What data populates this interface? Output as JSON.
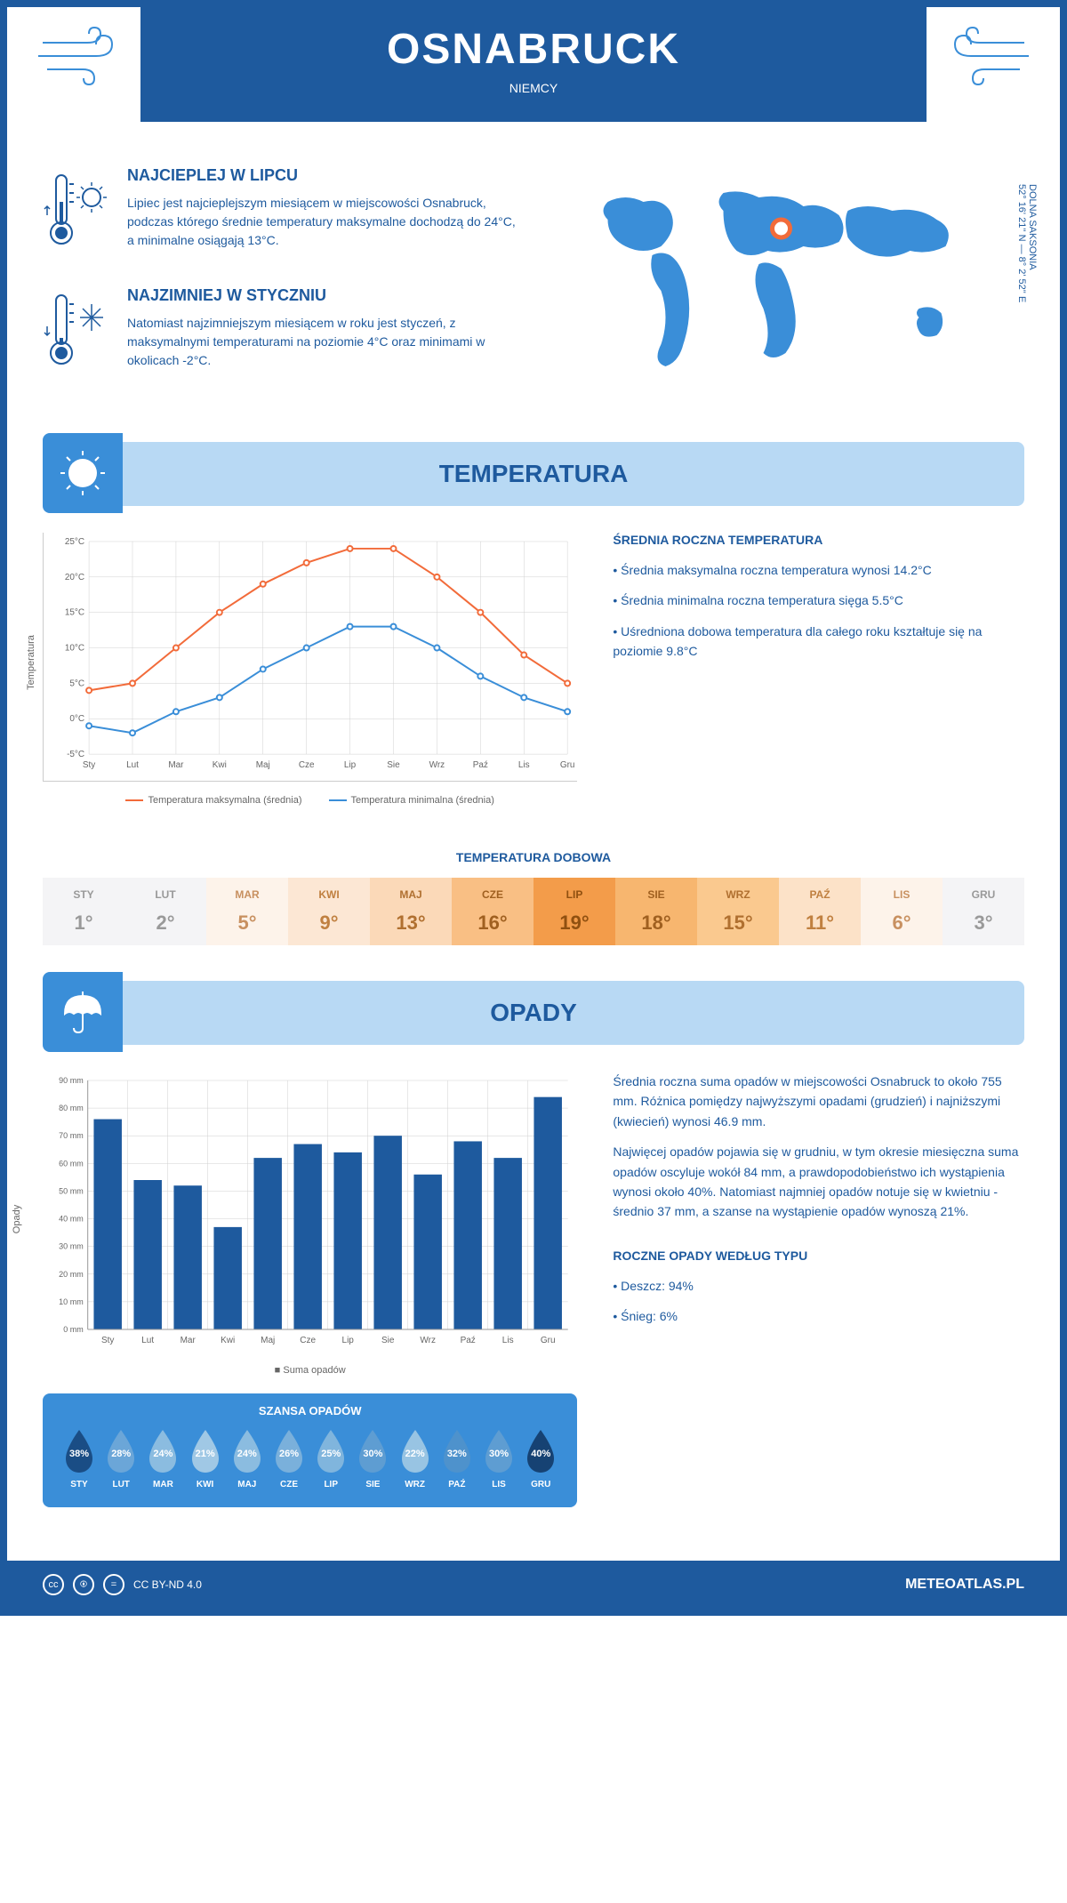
{
  "header": {
    "city": "OSNABRUCK",
    "country": "NIEMCY"
  },
  "coords": {
    "text": "52° 16' 21'' N — 8° 2' 52'' E",
    "region": "DOLNA SAKSONIA"
  },
  "warmest": {
    "title": "NAJCIEPLEJ W LIPCU",
    "text": "Lipiec jest najcieplejszym miesiącem w miejscowości Osnabruck, podczas którego średnie temperatury maksymalne dochodzą do 24°C, a minimalne osiągają 13°C."
  },
  "coldest": {
    "title": "NAJZIMNIEJ W STYCZNIU",
    "text": "Natomiast najzimniejszym miesiącem w roku jest styczeń, z maksymalnymi temperaturami na poziomie 4°C oraz minimami w okolicach -2°C."
  },
  "temp_section": {
    "title": "TEMPERATURA"
  },
  "temp_chart": {
    "type": "line",
    "months": [
      "Sty",
      "Lut",
      "Mar",
      "Kwi",
      "Maj",
      "Cze",
      "Lip",
      "Sie",
      "Wrz",
      "Paź",
      "Lis",
      "Gru"
    ],
    "max_series": {
      "label": "Temperatura maksymalna (średnia)",
      "color": "#f26b3a",
      "values": [
        4,
        5,
        10,
        15,
        19,
        22,
        24,
        24,
        20,
        15,
        9,
        5
      ]
    },
    "min_series": {
      "label": "Temperatura minimalna (średnia)",
      "color": "#3a8ed8",
      "values": [
        -1,
        -2,
        1,
        3,
        7,
        10,
        13,
        13,
        10,
        6,
        3,
        1
      ]
    },
    "ylim": [
      -5,
      25
    ],
    "ytick_step": 5,
    "y_labels": [
      "-5°C",
      "0°C",
      "5°C",
      "10°C",
      "15°C",
      "20°C",
      "25°C"
    ],
    "ylabel": "Temperatura",
    "grid_color": "#d0d0d0",
    "marker": "circle"
  },
  "temp_text": {
    "title": "ŚREDNIA ROCZNA TEMPERATURA",
    "bullets": [
      "• Średnia maksymalna roczna temperatura wynosi 14.2°C",
      "• Średnia minimalna roczna temperatura sięga 5.5°C",
      "• Uśredniona dobowa temperatura dla całego roku kształtuje się na poziomie 9.8°C"
    ]
  },
  "daily": {
    "title": "TEMPERATURA DOBOWA",
    "months": [
      "STY",
      "LUT",
      "MAR",
      "KWI",
      "MAJ",
      "CZE",
      "LIP",
      "SIE",
      "WRZ",
      "PAŹ",
      "LIS",
      "GRU"
    ],
    "values": [
      "1°",
      "2°",
      "5°",
      "9°",
      "13°",
      "16°",
      "19°",
      "18°",
      "15°",
      "11°",
      "6°",
      "3°"
    ],
    "bg_colors": [
      "#f4f4f6",
      "#f4f4f6",
      "#fdf3ea",
      "#fce7d4",
      "#fbd9b8",
      "#f9bf84",
      "#f39c4a",
      "#f7b66f",
      "#fac98f",
      "#fce2c8",
      "#fdf3ea",
      "#f4f4f6"
    ],
    "text_colors": [
      "#999",
      "#999",
      "#c89060",
      "#c08040",
      "#b07030",
      "#a06020",
      "#905010",
      "#a06020",
      "#b07030",
      "#c08040",
      "#c89060",
      "#999"
    ]
  },
  "precip_section": {
    "title": "OPADY"
  },
  "precip_chart": {
    "type": "bar",
    "months": [
      "Sty",
      "Lut",
      "Mar",
      "Kwi",
      "Maj",
      "Cze",
      "Lip",
      "Sie",
      "Wrz",
      "Paź",
      "Lis",
      "Gru"
    ],
    "values": [
      76,
      54,
      52,
      37,
      62,
      67,
      64,
      70,
      56,
      68,
      62,
      84
    ],
    "bar_color": "#1e5a9e",
    "ylim": [
      0,
      90
    ],
    "ytick_step": 10,
    "y_labels": [
      "0 mm",
      "10 mm",
      "20 mm",
      "30 mm",
      "40 mm",
      "50 mm",
      "60 mm",
      "70 mm",
      "80 mm",
      "90 mm"
    ],
    "ylabel": "Opady",
    "legend": "Suma opadów",
    "grid_color": "#d0d0d0"
  },
  "precip_text": {
    "p1": "Średnia roczna suma opadów w miejscowości Osnabruck to około 755 mm. Różnica pomiędzy najwyższymi opadami (grudzień) i najniższymi (kwiecień) wynosi 46.9 mm.",
    "p2": "Najwięcej opadów pojawia się w grudniu, w tym okresie miesięczna suma opadów oscyluje wokół 84 mm, a prawdopodobieństwo ich wystąpienia wynosi około 40%. Natomiast najmniej opadów notuje się w kwietniu - średnio 37 mm, a szanse na wystąpienie opadów wynoszą 21%.",
    "type_title": "ROCZNE OPADY WEDŁUG TYPU",
    "type_bullets": [
      "• Deszcz: 94%",
      "• Śnieg: 6%"
    ]
  },
  "chance": {
    "title": "SZANSA OPADÓW",
    "months": [
      "STY",
      "LUT",
      "MAR",
      "KWI",
      "MAJ",
      "CZE",
      "LIP",
      "SIE",
      "WRZ",
      "PAŹ",
      "LIS",
      "GRU"
    ],
    "values": [
      "38%",
      "28%",
      "24%",
      "21%",
      "24%",
      "26%",
      "25%",
      "30%",
      "22%",
      "32%",
      "30%",
      "40%"
    ],
    "drop_colors": [
      "#1a4d85",
      "#6ba6d8",
      "#8bbce0",
      "#a0c8e5",
      "#8bbce0",
      "#7ab0db",
      "#80b5dd",
      "#5e9dd2",
      "#98c4e3",
      "#4e92cc",
      "#5e9dd2",
      "#164273"
    ]
  },
  "footer": {
    "license": "CC BY-ND 4.0",
    "site": "METEOATLAS.PL"
  }
}
